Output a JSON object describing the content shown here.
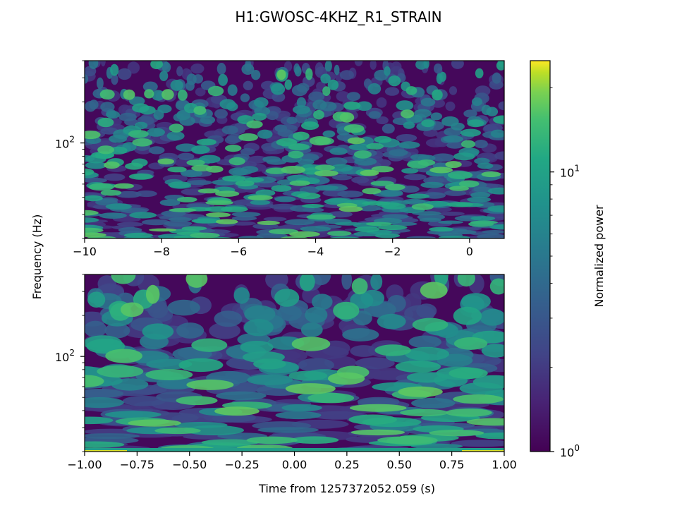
{
  "chart_data": {
    "type": "heatmap",
    "title": "H1:GWOSC-4KHZ_R1_STRAIN",
    "ylabel": "Frequency (Hz)",
    "colorbar": {
      "label": "Normalized power",
      "scale": "log",
      "range": [
        1,
        25
      ],
      "ticks": [
        {
          "value": 1,
          "base": "10",
          "exp": "0"
        },
        {
          "value": 10,
          "base": "10",
          "exp": "1"
        }
      ],
      "colormap": "viridis"
    },
    "panels": [
      {
        "name": "wide",
        "xlim": [
          -10,
          0.9
        ],
        "ylim": [
          20,
          400
        ],
        "yscale": "log",
        "xticks": [
          {
            "value": -10,
            "label": "−10"
          },
          {
            "value": -8,
            "label": "−8"
          },
          {
            "value": -6,
            "label": "−6"
          },
          {
            "value": -4,
            "label": "−4"
          },
          {
            "value": -2,
            "label": "−2"
          },
          {
            "value": 0,
            "label": "0"
          }
        ],
        "yticks": [
          {
            "value": 100,
            "base": "10",
            "exp": "2"
          }
        ],
        "xlabel": ""
      },
      {
        "name": "zoom",
        "xlim": [
          -1,
          1
        ],
        "ylim": [
          20,
          400
        ],
        "yscale": "log",
        "xticks": [
          {
            "value": -1,
            "label": "−1.00"
          },
          {
            "value": -0.75,
            "label": "−0.75"
          },
          {
            "value": -0.5,
            "label": "−0.50"
          },
          {
            "value": -0.25,
            "label": "−0.25"
          },
          {
            "value": 0,
            "label": "0.00"
          },
          {
            "value": 0.25,
            "label": "0.25"
          },
          {
            "value": 0.5,
            "label": "0.50"
          },
          {
            "value": 0.75,
            "label": "0.75"
          },
          {
            "value": 1,
            "label": "1.00"
          }
        ],
        "yticks": [
          {
            "value": 100,
            "base": "10",
            "exp": "2"
          }
        ],
        "xlabel": "Time from 1257372052.059 (s)"
      }
    ]
  }
}
